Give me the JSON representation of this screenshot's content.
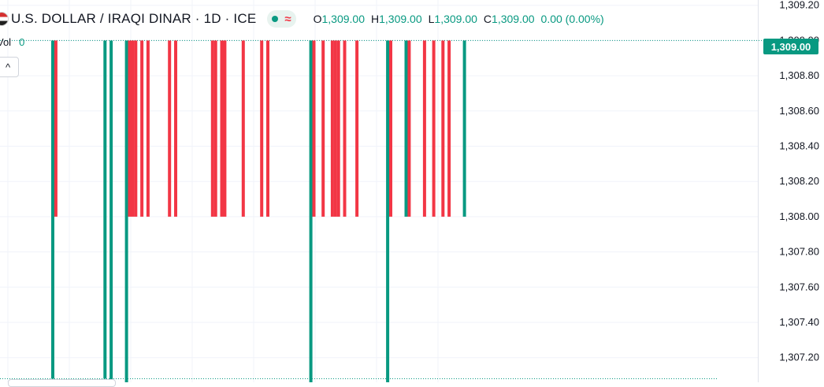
{
  "header": {
    "title": "U.S. DOLLAR / IRAQI DINAR · 1D · ICE",
    "flag_icon": "us-flag-icon",
    "status_icon": "approx-icon",
    "approx_glyph": "≈",
    "ohlc": {
      "o_label": "O",
      "o_value": "1,309.00",
      "h_label": "H",
      "h_value": "1,309.00",
      "l_label": "L",
      "l_value": "1,309.00",
      "c_label": "C",
      "c_value": "1,309.00",
      "change": "0.00 (0.00%)"
    }
  },
  "volume": {
    "label": "Vol",
    "value": "0",
    "collapse_glyph": "^"
  },
  "price_badge": "1,309.00",
  "colors": {
    "up": "#089981",
    "down": "#f23645",
    "grid": "#f0f3fa",
    "text": "#131722"
  },
  "chart_data": {
    "type": "bar",
    "subtype": "ohlc-range",
    "ylim": [
      1307.06,
      1309.23
    ],
    "yticks": [
      {
        "value": 1309.2,
        "label": "1,309.20"
      },
      {
        "value": 1309.0,
        "label": "1,309.00"
      },
      {
        "value": 1308.8,
        "label": "1,308.80"
      },
      {
        "value": 1308.6,
        "label": "1,308.60"
      },
      {
        "value": 1308.4,
        "label": "1,308.40"
      },
      {
        "value": 1308.2,
        "label": "1,308.20"
      },
      {
        "value": 1308.0,
        "label": "1,308.00"
      },
      {
        "value": 1307.8,
        "label": "1,307.80"
      },
      {
        "value": 1307.6,
        "label": "1,307.60"
      },
      {
        "value": 1307.4,
        "label": "1,307.40"
      },
      {
        "value": 1307.2,
        "label": "1,307.20"
      }
    ],
    "last_price": 1309.0,
    "grid": true,
    "bars": [
      {
        "i": 0,
        "low": 1307.08,
        "high": 1309.0,
        "dir": "up"
      },
      {
        "i": 1,
        "low": 1308.0,
        "high": 1309.0,
        "dir": "down"
      },
      {
        "i": 17,
        "low": 1307.08,
        "high": 1309.0,
        "dir": "up"
      },
      {
        "i": 19,
        "low": 1307.06,
        "high": 1309.0,
        "dir": "up"
      },
      {
        "i": 24,
        "low": 1307.06,
        "high": 1309.0,
        "dir": "up"
      },
      {
        "i": 25,
        "low": 1308.0,
        "high": 1309.0,
        "dir": "down"
      },
      {
        "i": 26,
        "low": 1308.0,
        "high": 1309.0,
        "dir": "down"
      },
      {
        "i": 27,
        "low": 1308.0,
        "high": 1309.0,
        "dir": "down"
      },
      {
        "i": 29,
        "low": 1308.0,
        "high": 1309.0,
        "dir": "down"
      },
      {
        "i": 31,
        "low": 1308.0,
        "high": 1309.0,
        "dir": "down"
      },
      {
        "i": 38,
        "low": 1308.0,
        "high": 1309.0,
        "dir": "down"
      },
      {
        "i": 40,
        "low": 1308.0,
        "high": 1309.0,
        "dir": "down"
      },
      {
        "i": 52,
        "low": 1308.0,
        "high": 1309.0,
        "dir": "down"
      },
      {
        "i": 53,
        "low": 1308.0,
        "high": 1309.0,
        "dir": "down"
      },
      {
        "i": 55,
        "low": 1308.0,
        "high": 1309.0,
        "dir": "down"
      },
      {
        "i": 56,
        "low": 1308.0,
        "high": 1309.0,
        "dir": "down"
      },
      {
        "i": 62,
        "low": 1308.0,
        "high": 1309.0,
        "dir": "down"
      },
      {
        "i": 68,
        "low": 1308.0,
        "high": 1309.0,
        "dir": "down"
      },
      {
        "i": 70,
        "low": 1308.0,
        "high": 1309.0,
        "dir": "down"
      },
      {
        "i": 84,
        "low": 1307.06,
        "high": 1309.0,
        "dir": "up"
      },
      {
        "i": 85,
        "low": 1308.0,
        "high": 1309.0,
        "dir": "down"
      },
      {
        "i": 88,
        "low": 1308.0,
        "high": 1309.0,
        "dir": "down"
      },
      {
        "i": 91,
        "low": 1308.0,
        "high": 1309.0,
        "dir": "down"
      },
      {
        "i": 92,
        "low": 1308.0,
        "high": 1309.0,
        "dir": "down"
      },
      {
        "i": 93,
        "low": 1308.0,
        "high": 1309.0,
        "dir": "down"
      },
      {
        "i": 95,
        "low": 1308.0,
        "high": 1309.0,
        "dir": "down"
      },
      {
        "i": 99,
        "low": 1308.0,
        "high": 1309.0,
        "dir": "down"
      },
      {
        "i": 109,
        "low": 1307.06,
        "high": 1309.0,
        "dir": "up"
      },
      {
        "i": 110,
        "low": 1308.0,
        "high": 1309.0,
        "dir": "down"
      },
      {
        "i": 115,
        "low": 1308.0,
        "high": 1309.0,
        "dir": "up"
      },
      {
        "i": 116,
        "low": 1308.0,
        "high": 1309.0,
        "dir": "down"
      },
      {
        "i": 121,
        "low": 1308.0,
        "high": 1309.0,
        "dir": "down"
      },
      {
        "i": 124,
        "low": 1308.0,
        "high": 1309.0,
        "dir": "down"
      },
      {
        "i": 127,
        "low": 1308.0,
        "high": 1309.0,
        "dir": "down"
      },
      {
        "i": 129,
        "low": 1308.0,
        "high": 1309.0,
        "dir": "down"
      },
      {
        "i": 134,
        "low": 1308.0,
        "high": 1309.0,
        "dir": "up"
      }
    ],
    "x_count": 160,
    "reference_lines": [
      {
        "value": 1309.0,
        "style": "dotted",
        "color": "#089981"
      },
      {
        "value": 1307.08,
        "style": "dotted",
        "color": "#089981"
      }
    ]
  }
}
